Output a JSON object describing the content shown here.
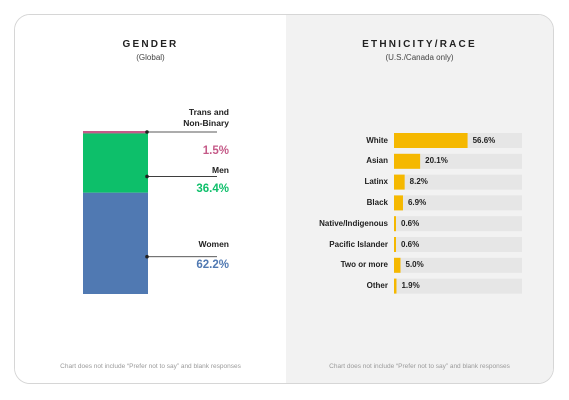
{
  "gender": {
    "title": "GENDER",
    "subtitle": "(Global)",
    "footnote": "Chart does not include “Prefer not to say” and blank responses"
  },
  "ethnicity": {
    "title": "ETHNICITY/RACE",
    "subtitle": "(U.S./Canada only)",
    "footnote": "Chart does not include “Prefer not to say” and blank responses"
  },
  "chart_data": [
    {
      "type": "bar",
      "stacked": true,
      "title": "GENDER",
      "subtitle": "(Global)",
      "categories": [
        "Trans and Non-Binary",
        "Men",
        "Women"
      ],
      "values": [
        1.5,
        36.4,
        62.2
      ],
      "value_labels": [
        "1.5%",
        "36.4%",
        "62.2%"
      ],
      "colors": [
        "#c55a88",
        "#0dbf6a",
        "#5079b2"
      ],
      "unit": "%"
    },
    {
      "type": "bar",
      "orientation": "horizontal",
      "title": "ETHNICITY/RACE",
      "subtitle": "(U.S./Canada only)",
      "categories": [
        "White",
        "Asian",
        "Latinx",
        "Black",
        "Native/Indigenous",
        "Pacific Islander",
        "Two or more",
        "Other"
      ],
      "values": [
        56.6,
        20.1,
        8.2,
        6.9,
        0.6,
        0.6,
        5.0,
        1.9
      ],
      "value_labels": [
        "56.6%",
        "20.1%",
        "8.2%",
        "6.9%",
        "0.6%",
        "0.6%",
        "5.0%",
        "1.9%"
      ],
      "xlim": [
        0,
        100
      ],
      "bar_color": "#f5b800",
      "track_color": "#e6e6e6",
      "unit": "%"
    }
  ]
}
